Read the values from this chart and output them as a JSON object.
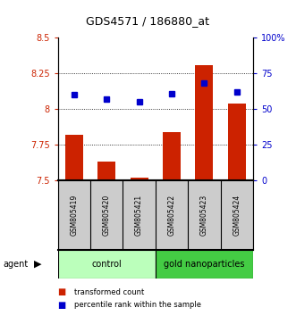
{
  "title": "GDS4571 / 186880_at",
  "samples": [
    "GSM805419",
    "GSM805420",
    "GSM805421",
    "GSM805422",
    "GSM805423",
    "GSM805424"
  ],
  "bar_values": [
    7.82,
    7.63,
    7.52,
    7.84,
    8.31,
    8.04
  ],
  "bar_base": 7.5,
  "blue_values": [
    60,
    57,
    55,
    61,
    68,
    62
  ],
  "ylim_left": [
    7.5,
    8.5
  ],
  "ylim_right": [
    0,
    100
  ],
  "yticks_left": [
    7.5,
    7.75,
    8.0,
    8.25,
    8.5
  ],
  "yticks_right": [
    0,
    25,
    50,
    75,
    100
  ],
  "yticklabels_left": [
    "7.5",
    "7.75",
    "8",
    "8.25",
    "8.5"
  ],
  "yticklabels_right": [
    "0",
    "25",
    "50",
    "75",
    "100%"
  ],
  "grid_lines": [
    7.75,
    8.0,
    8.25
  ],
  "bar_color": "#cc2200",
  "blue_color": "#0000cc",
  "group_labels": [
    "control",
    "gold nanoparticles"
  ],
  "group_ranges": [
    [
      0,
      3
    ],
    [
      3,
      6
    ]
  ],
  "group_colors": [
    "#bbffbb",
    "#44cc44"
  ],
  "agent_label": "agent",
  "legend_items": [
    "transformed count",
    "percentile rank within the sample"
  ],
  "legend_colors": [
    "#cc2200",
    "#0000cc"
  ],
  "bar_width": 0.55,
  "plot_bgcolor": "#ffffff",
  "label_area_color": "#cccccc"
}
